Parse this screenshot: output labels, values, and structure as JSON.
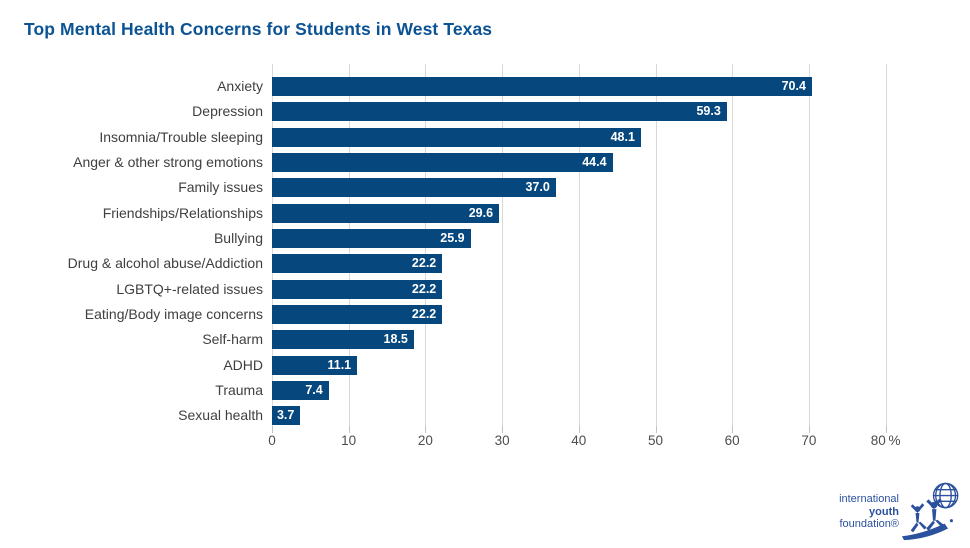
{
  "title": "Top Mental Health Concerns for Students in West Texas",
  "title_color": "#0c5394",
  "chart_data": {
    "type": "bar",
    "orientation": "horizontal",
    "title": "Top Mental Health Concerns for Students in West Texas",
    "categories": [
      "Anxiety",
      "Depression",
      "Insomnia/Trouble sleeping",
      "Anger & other strong emotions",
      "Family issues",
      "Friendships/Relationships",
      "Bullying",
      "Drug & alcohol abuse/Addiction",
      "LGBTQ+-related issues",
      "Eating/Body image concerns",
      "Self-harm",
      "ADHD",
      "Trauma",
      "Sexual health"
    ],
    "values": [
      70.4,
      59.3,
      48.1,
      44.4,
      37.0,
      29.6,
      25.9,
      22.2,
      22.2,
      22.2,
      18.5,
      11.1,
      7.4,
      3.7
    ],
    "value_labels": [
      "70.4",
      "59.3",
      "48.1",
      "44.4",
      "37.0",
      "29.6",
      "25.9",
      "22.2",
      "22.2",
      "22.2",
      "18.5",
      "11.1",
      "7.4",
      "3.7"
    ],
    "xlabel": "",
    "ylabel": "",
    "xlim": [
      0,
      80
    ],
    "x_ticks": [
      0,
      10,
      20,
      30,
      40,
      50,
      60,
      70,
      80
    ],
    "x_tick_labels": [
      "0",
      "10",
      "20",
      "30",
      "40",
      "50",
      "60",
      "70",
      "80 %"
    ],
    "grid": true,
    "legend": false,
    "bar_color": "#06477d",
    "value_label_color": "#ffffff",
    "gridline_color": "#d9d9d9"
  },
  "logo": {
    "line1": "international",
    "line2": "youth",
    "line3": "foundation®",
    "color": "#2b519e",
    "icon": "globe-and-jumping-figures"
  }
}
